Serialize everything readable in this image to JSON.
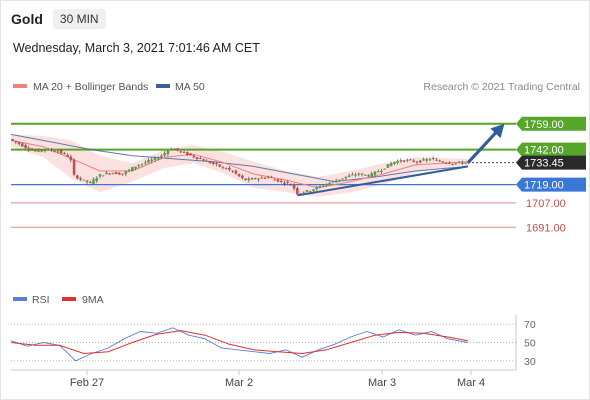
{
  "header": {
    "title": "Gold",
    "timeframe": "30 MIN",
    "timestamp": "Wednesday, March 3, 2021 7:01:46 AM CET"
  },
  "colors": {
    "ma20": "#f08080",
    "bollinger_fill": "#fbdcdc",
    "ma50": "#3a5f9a",
    "resistance": "#55a629",
    "support": "#3a78d8",
    "lower_support": "#e88a8a",
    "current": "#2a2a2a",
    "arrow": "#2f5d9e",
    "rsi": "#5a7fd6",
    "rsi_ma": "#e03030",
    "candle_up": "#5a9e4a",
    "candle_down": "#c0504d"
  },
  "chart_data": [
    {
      "type": "line",
      "subtype": "candlestick",
      "legend": [
        {
          "name": "MA 20 + Bollinger Bands",
          "color": "#f08080"
        },
        {
          "name": "MA 50",
          "color": "#3a5f9a"
        }
      ],
      "watermark": "Research © 2021 Trading Central",
      "x_ticks": [
        "Feb 27",
        "Mar 2",
        "Mar 3",
        "Mar 4"
      ],
      "y_min": 1680,
      "y_max": 1772,
      "price_series": [
        {
          "t": 0,
          "p": 1749
        },
        {
          "t": 3,
          "p": 1745
        },
        {
          "t": 6,
          "p": 1741
        },
        {
          "t": 9,
          "p": 1742
        },
        {
          "t": 12,
          "p": 1741
        },
        {
          "t": 15,
          "p": 1737
        },
        {
          "t": 16,
          "p": 1725
        },
        {
          "t": 18,
          "p": 1722
        },
        {
          "t": 20,
          "p": 1720
        },
        {
          "t": 22,
          "p": 1725
        },
        {
          "t": 25,
          "p": 1727
        },
        {
          "t": 28,
          "p": 1726
        },
        {
          "t": 31,
          "p": 1731
        },
        {
          "t": 34,
          "p": 1734
        },
        {
          "t": 37,
          "p": 1737
        },
        {
          "t": 40,
          "p": 1743
        },
        {
          "t": 43,
          "p": 1740
        },
        {
          "t": 46,
          "p": 1737
        },
        {
          "t": 49,
          "p": 1734
        },
        {
          "t": 52,
          "p": 1731
        },
        {
          "t": 55,
          "p": 1728
        },
        {
          "t": 58,
          "p": 1722
        },
        {
          "t": 61,
          "p": 1723
        },
        {
          "t": 64,
          "p": 1724
        },
        {
          "t": 67,
          "p": 1721
        },
        {
          "t": 70,
          "p": 1719
        },
        {
          "t": 71,
          "p": 1713
        },
        {
          "t": 74,
          "p": 1715
        },
        {
          "t": 77,
          "p": 1718
        },
        {
          "t": 80,
          "p": 1721
        },
        {
          "t": 83,
          "p": 1724
        },
        {
          "t": 86,
          "p": 1726
        },
        {
          "t": 89,
          "p": 1725
        },
        {
          "t": 92,
          "p": 1729
        },
        {
          "t": 95,
          "p": 1734
        },
        {
          "t": 98,
          "p": 1735
        },
        {
          "t": 101,
          "p": 1734
        },
        {
          "t": 104,
          "p": 1736
        },
        {
          "t": 107,
          "p": 1734
        },
        {
          "t": 110,
          "p": 1733
        },
        {
          "t": 113,
          "p": 1733.45
        }
      ],
      "ma20": [
        {
          "t": 0,
          "p": 1748
        },
        {
          "t": 8,
          "p": 1744
        },
        {
          "t": 15,
          "p": 1736
        },
        {
          "t": 22,
          "p": 1728
        },
        {
          "t": 30,
          "p": 1728
        },
        {
          "t": 38,
          "p": 1737
        },
        {
          "t": 45,
          "p": 1739
        },
        {
          "t": 52,
          "p": 1734
        },
        {
          "t": 60,
          "p": 1726
        },
        {
          "t": 68,
          "p": 1722
        },
        {
          "t": 76,
          "p": 1717
        },
        {
          "t": 84,
          "p": 1721
        },
        {
          "t": 92,
          "p": 1726
        },
        {
          "t": 100,
          "p": 1732
        },
        {
          "t": 113,
          "p": 1734
        }
      ],
      "ma50": [
        {
          "t": 0,
          "p": 1752
        },
        {
          "t": 10,
          "p": 1747
        },
        {
          "t": 20,
          "p": 1742
        },
        {
          "t": 30,
          "p": 1738
        },
        {
          "t": 40,
          "p": 1736
        },
        {
          "t": 50,
          "p": 1734
        },
        {
          "t": 60,
          "p": 1731
        },
        {
          "t": 70,
          "p": 1726
        },
        {
          "t": 80,
          "p": 1721
        },
        {
          "t": 90,
          "p": 1724
        },
        {
          "t": 100,
          "p": 1728
        },
        {
          "t": 113,
          "p": 1731
        }
      ],
      "bollinger_upper": [
        {
          "t": 0,
          "p": 1752
        },
        {
          "t": 8,
          "p": 1751
        },
        {
          "t": 15,
          "p": 1748
        },
        {
          "t": 22,
          "p": 1738
        },
        {
          "t": 30,
          "p": 1733
        },
        {
          "t": 38,
          "p": 1742
        },
        {
          "t": 45,
          "p": 1745
        },
        {
          "t": 52,
          "p": 1741
        },
        {
          "t": 60,
          "p": 1734
        },
        {
          "t": 68,
          "p": 1728
        },
        {
          "t": 76,
          "p": 1724
        },
        {
          "t": 84,
          "p": 1728
        },
        {
          "t": 92,
          "p": 1733
        },
        {
          "t": 100,
          "p": 1737
        },
        {
          "t": 113,
          "p": 1736
        }
      ],
      "bollinger_lower": [
        {
          "t": 0,
          "p": 1744
        },
        {
          "t": 8,
          "p": 1737
        },
        {
          "t": 15,
          "p": 1723
        },
        {
          "t": 22,
          "p": 1714
        },
        {
          "t": 30,
          "p": 1721
        },
        {
          "t": 38,
          "p": 1730
        },
        {
          "t": 45,
          "p": 1733
        },
        {
          "t": 52,
          "p": 1727
        },
        {
          "t": 60,
          "p": 1717
        },
        {
          "t": 68,
          "p": 1714
        },
        {
          "t": 76,
          "p": 1711
        },
        {
          "t": 84,
          "p": 1714
        },
        {
          "t": 92,
          "p": 1719
        },
        {
          "t": 100,
          "p": 1727
        },
        {
          "t": 113,
          "p": 1732
        }
      ],
      "levels": [
        {
          "value": 1759.0,
          "label": "1759.00",
          "kind": "resistance"
        },
        {
          "value": 1742.0,
          "label": "1742.00",
          "kind": "resistance"
        },
        {
          "value": 1733.45,
          "label": "1733.45",
          "kind": "current"
        },
        {
          "value": 1719.0,
          "label": "1719.00",
          "kind": "support"
        },
        {
          "value": 1707.0,
          "label": "1707.00",
          "kind": "lower_support"
        },
        {
          "value": 1691.0,
          "label": "1691.00",
          "kind": "lower_support"
        }
      ],
      "trendline": {
        "start": {
          "t": 71,
          "p": 1712
        },
        "end": {
          "t": 113,
          "p": 1731
        }
      },
      "forecast_arrow": {
        "start": {
          "t": 113,
          "p": 1733.45
        },
        "end": {
          "t": 122,
          "p": 1759
        }
      }
    },
    {
      "type": "line",
      "title": "RSI",
      "legend": [
        {
          "name": "RSI",
          "color": "#5a7fd6"
        },
        {
          "name": "9MA",
          "color": "#e03030"
        }
      ],
      "y_ticks": [
        "70",
        "50",
        "30"
      ],
      "y_min": 20,
      "y_max": 80,
      "rsi": [
        {
          "t": 0,
          "p": 52
        },
        {
          "t": 4,
          "p": 46
        },
        {
          "t": 8,
          "p": 50
        },
        {
          "t": 12,
          "p": 47
        },
        {
          "t": 16,
          "p": 30
        },
        {
          "t": 20,
          "p": 38
        },
        {
          "t": 24,
          "p": 44
        },
        {
          "t": 28,
          "p": 54
        },
        {
          "t": 32,
          "p": 62
        },
        {
          "t": 36,
          "p": 60
        },
        {
          "t": 40,
          "p": 66
        },
        {
          "t": 44,
          "p": 58
        },
        {
          "t": 48,
          "p": 54
        },
        {
          "t": 52,
          "p": 44
        },
        {
          "t": 56,
          "p": 42
        },
        {
          "t": 60,
          "p": 40
        },
        {
          "t": 64,
          "p": 38
        },
        {
          "t": 68,
          "p": 42
        },
        {
          "t": 72,
          "p": 34
        },
        {
          "t": 76,
          "p": 42
        },
        {
          "t": 80,
          "p": 48
        },
        {
          "t": 84,
          "p": 56
        },
        {
          "t": 88,
          "p": 62
        },
        {
          "t": 92,
          "p": 56
        },
        {
          "t": 96,
          "p": 64
        },
        {
          "t": 100,
          "p": 58
        },
        {
          "t": 104,
          "p": 62
        },
        {
          "t": 108,
          "p": 54
        },
        {
          "t": 113,
          "p": 50
        }
      ],
      "rsi_ma": [
        {
          "t": 0,
          "p": 50
        },
        {
          "t": 6,
          "p": 47
        },
        {
          "t": 12,
          "p": 47
        },
        {
          "t": 18,
          "p": 38
        },
        {
          "t": 24,
          "p": 40
        },
        {
          "t": 30,
          "p": 50
        },
        {
          "t": 36,
          "p": 59
        },
        {
          "t": 42,
          "p": 63
        },
        {
          "t": 48,
          "p": 58
        },
        {
          "t": 54,
          "p": 48
        },
        {
          "t": 60,
          "p": 42
        },
        {
          "t": 66,
          "p": 40
        },
        {
          "t": 72,
          "p": 38
        },
        {
          "t": 78,
          "p": 42
        },
        {
          "t": 84,
          "p": 50
        },
        {
          "t": 90,
          "p": 58
        },
        {
          "t": 96,
          "p": 61
        },
        {
          "t": 102,
          "p": 60
        },
        {
          "t": 108,
          "p": 56
        },
        {
          "t": 113,
          "p": 52
        }
      ]
    }
  ]
}
